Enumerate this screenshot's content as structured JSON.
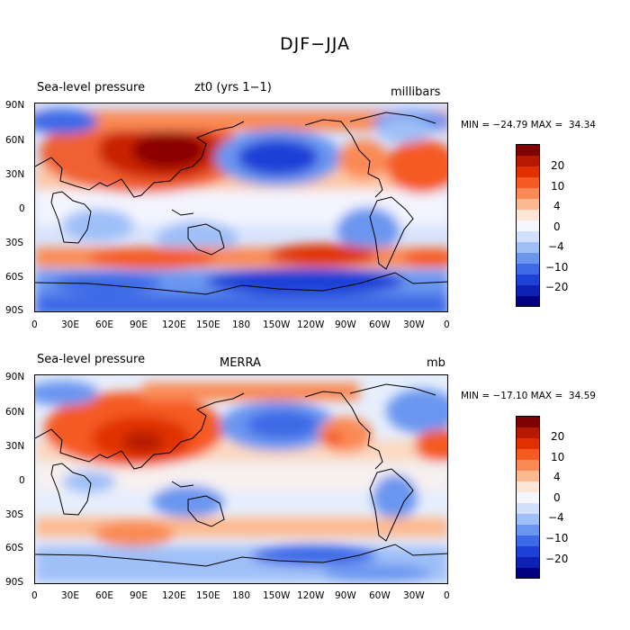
{
  "title": "DJF−JJA",
  "panels": [
    {
      "left_title": "Sea-level pressure",
      "center_title": "zt0 (yrs 1−1)",
      "right_title": "millibars",
      "min_max": "MIN = −24.79 MAX =  34.34",
      "colorbar_labels": [
        "20",
        "10",
        "4",
        "0",
        "−4",
        "−10",
        "−20"
      ]
    },
    {
      "left_title": "Sea-level pressure",
      "center_title": "MERRA",
      "right_title": "mb",
      "min_max": "MIN = −17.10 MAX =  34.59",
      "colorbar_labels": [
        "20",
        "10",
        "4",
        "0",
        "−4",
        "−10",
        "−20"
      ]
    }
  ],
  "lat_labels": [
    "90N",
    "60N",
    "30N",
    "0",
    "30S",
    "60S",
    "90S"
  ],
  "lon_labels": [
    "0",
    "30E",
    "60E",
    "90E",
    "120E",
    "150E",
    "180",
    "150W",
    "120W",
    "90W",
    "60W",
    "30W",
    "0"
  ],
  "colors": {
    "palette": [
      "#7f0000",
      "#b51a00",
      "#e03000",
      "#f55a20",
      "#fa8a55",
      "#fcb990",
      "#fde6d6",
      "#f6f6ff",
      "#d2e0fc",
      "#9fbff8",
      "#6a96f0",
      "#3d6ae6",
      "#1f40d6",
      "#0d22b5",
      "#000080"
    ]
  }
}
